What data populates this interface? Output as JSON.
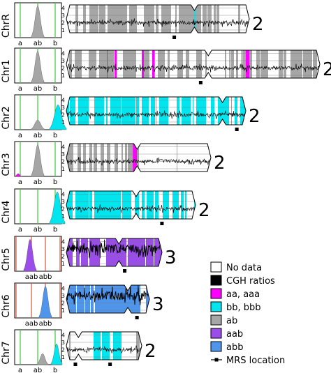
{
  "hist_ticks": [
    "a",
    "ab",
    "b"
  ],
  "hist_ticks_aab": [
    "aab",
    "abb"
  ],
  "y_ticks": [
    "1",
    "2",
    "3",
    "4"
  ],
  "colors": {
    "nodata": "#ffffff",
    "cgh": "#000000",
    "aa_aaa": "#ff00ff",
    "bb_bbb": "#00e5ee",
    "ab": "#a6a6a6",
    "aab": "#9b4dea",
    "abb": "#4f95ec",
    "green_line": "#3cc83c",
    "red_line": "#d9533d"
  },
  "chromosomes": [
    {
      "label": "ChrR",
      "ploidy": "2",
      "hist": "ab",
      "state_main": "ab"
    },
    {
      "label": "Chr1",
      "ploidy": "2",
      "hist": "ab",
      "state_main": "ab"
    },
    {
      "label": "Chr2",
      "ploidy": "2",
      "hist": "abbb",
      "state_main": "bb"
    },
    {
      "label": "Chr3",
      "ploidy": "2",
      "hist": "ab_aa",
      "state_main": "ab"
    },
    {
      "label": "Chr4",
      "ploidy": "2",
      "hist": "bbb",
      "state_main": "bb"
    },
    {
      "label": "Chr5",
      "ploidy": "3",
      "hist": "aab",
      "state_main": "aab"
    },
    {
      "label": "Chr6",
      "ploidy": "3",
      "hist": "abb",
      "state_main": "abb"
    },
    {
      "label": "Chr7",
      "ploidy": "2",
      "hist": "ab_bb",
      "state_main": "ab"
    }
  ],
  "legend": [
    {
      "label": "No data",
      "key": "nodata"
    },
    {
      "label": "CGH ratios",
      "key": "cgh"
    },
    {
      "label": "aa, aaa",
      "key": "aa_aaa"
    },
    {
      "label": "bb, bbb",
      "key": "bb_bbb"
    },
    {
      "label": "ab",
      "key": "ab"
    },
    {
      "label": "aab",
      "key": "aab"
    },
    {
      "label": "abb",
      "key": "abb"
    },
    {
      "label": "MRS location",
      "key": "mrs"
    }
  ]
}
